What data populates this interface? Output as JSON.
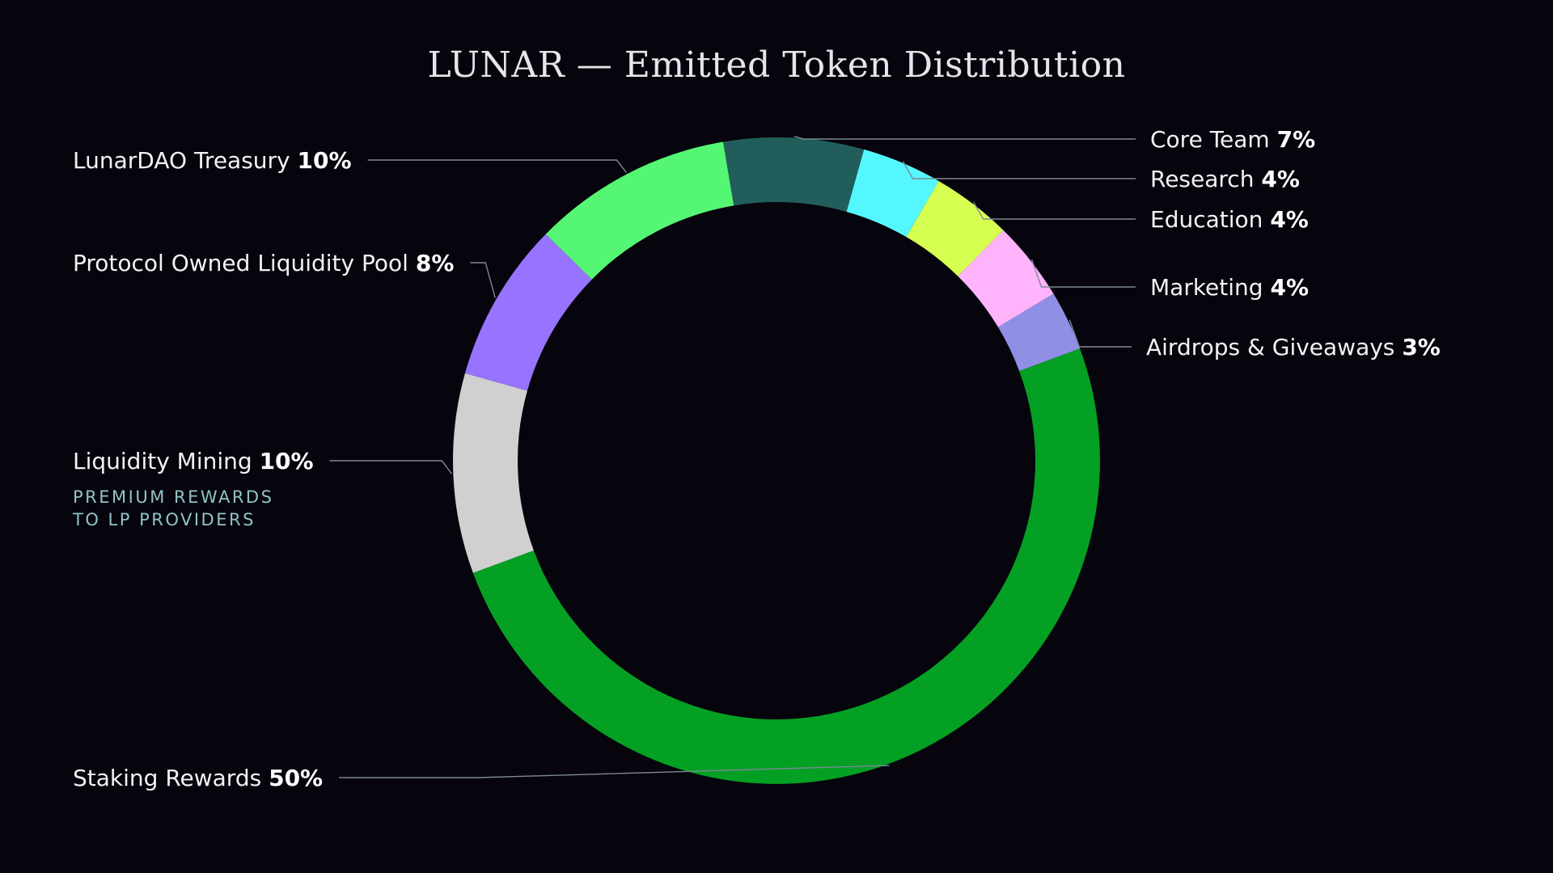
{
  "chart_data": {
    "type": "pie",
    "variant": "donut",
    "title": "LUNAR — Emitted Token Distribution",
    "unit": "%",
    "slices": [
      {
        "label": "Core Team",
        "value": 7,
        "color": "#215e5b"
      },
      {
        "label": "Research",
        "value": 4,
        "color": "#55f7ff"
      },
      {
        "label": "Education",
        "value": 4,
        "color": "#d6ff52"
      },
      {
        "label": "Marketing",
        "value": 4,
        "color": "#ffb3fa"
      },
      {
        "label": "Airdrops & Giveaways",
        "value": 3,
        "color": "#8f8fe6"
      },
      {
        "label": "Staking Rewards",
        "value": 50,
        "color": "#04a024"
      },
      {
        "label": "Liquidity Mining",
        "value": 10,
        "color": "#d0d0d0",
        "note": [
          "PREMIUM REWARDS",
          "TO LP PROVIDERS"
        ]
      },
      {
        "label": "Protocol Owned Liquidity Pool",
        "value": 8,
        "color": "#9873ff"
      },
      {
        "label": "LunarDAO Treasury",
        "value": 10,
        "color": "#54f673"
      }
    ],
    "legend": "none",
    "labels": "outside-with-leader-lines"
  },
  "colors": {
    "background": "#06040c",
    "leader_line": "#7d8a99",
    "note_text": "#8fc4c9"
  }
}
